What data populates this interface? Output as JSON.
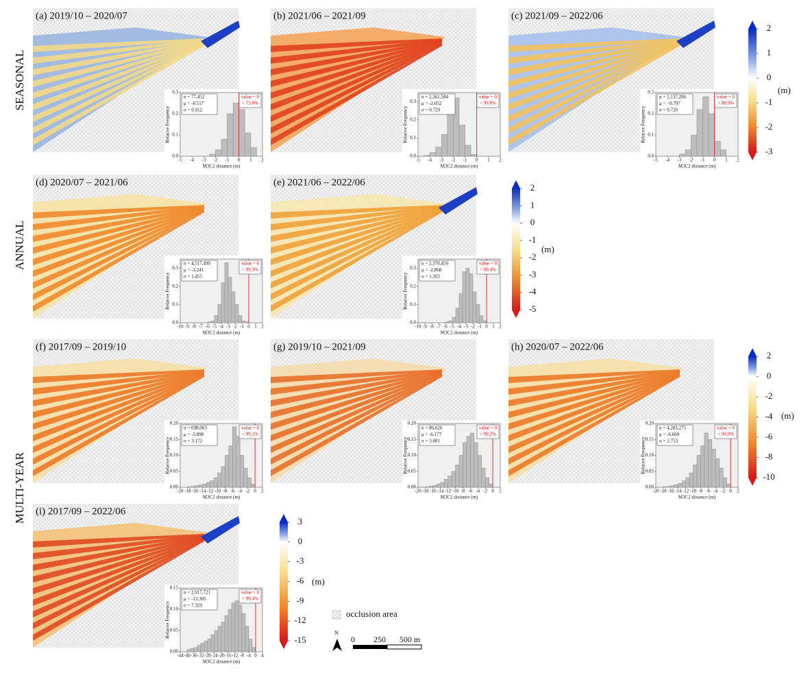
{
  "chart_data": [
    {
      "type": "histogram",
      "panel_label": "(a)  2019/10 – 2020/07",
      "bins": [
        -2.5,
        -2,
        -1.5,
        -1,
        -0.5,
        0,
        0.5,
        1,
        1.5
      ],
      "values": [
        0.01,
        0.03,
        0.08,
        0.2,
        0.25,
        0.22,
        0.11,
        0.04
      ],
      "xlim": [
        -5,
        2
      ],
      "xticks": [
        -5,
        -4,
        -3,
        -2,
        -1,
        0,
        1,
        2
      ],
      "ylim": [
        0,
        0.3
      ],
      "yticks": [
        {
          "value": 0,
          "label": "0.0"
        },
        0.1,
        0.2,
        0.3
      ],
      "xlabel": "M3C2 distance (m)",
      "ylabel": "Relative Frequency",
      "stats": [
        "n = 77,452",
        "μ = -0.517",
        "σ = 0.912"
      ],
      "threshold": 0,
      "threshold_label": [
        "value = 0",
        "< 73.0%"
      ],
      "color": "#bdbdbd"
    },
    {
      "type": "histogram",
      "panel_label": "(b)  2021/06 – 2021/09",
      "bins": [
        -4.5,
        -4,
        -3.5,
        -3,
        -2.5,
        -2,
        -1.5,
        -1,
        -0.5,
        0
      ],
      "values": [
        0.005,
        0.02,
        0.05,
        0.12,
        0.25,
        0.32,
        0.17,
        0.06,
        0.01
      ],
      "xlim": [
        -5,
        2
      ],
      "xticks": [
        -5,
        -4,
        -3,
        -2,
        -1,
        0,
        1,
        2
      ],
      "ylim": [
        0,
        0.35
      ],
      "yticks": [
        {
          "value": 0,
          "label": "0.0"
        },
        0.1,
        0.2,
        0.3
      ],
      "xlabel": "M3C2 distance (m)",
      "ylabel": "Relative Frequency",
      "stats": [
        "n = 2,361,584",
        "μ = -2.052",
        "σ = 0.729"
      ],
      "threshold": 0,
      "threshold_label": [
        "value = 0",
        "< 99.8%"
      ],
      "color": "#bdbdbd"
    },
    {
      "type": "histogram",
      "panel_label": "(c)  2021/09 – 2022/06",
      "bins": [
        -3,
        -2.5,
        -2,
        -1.5,
        -1,
        -0.5,
        0,
        0.5,
        1
      ],
      "values": [
        0.01,
        0.03,
        0.1,
        0.22,
        0.28,
        0.2,
        0.07,
        0.03
      ],
      "xlim": [
        -5,
        2
      ],
      "xticks": [
        -5,
        -4,
        -3,
        -2,
        -1,
        0,
        1,
        2
      ],
      "ylim": [
        0,
        0.3
      ],
      "yticks": [
        {
          "value": 0,
          "label": "0.0"
        },
        0.1,
        0.2,
        0.3
      ],
      "xlabel": "M3C2 distance (m)",
      "ylabel": "Relative Frequency",
      "stats": [
        "n = 2,137,206",
        "μ = −0.797",
        "σ = 0.720"
      ],
      "threshold": 0,
      "threshold_label": [
        "value = 0",
        "< 88.9%"
      ],
      "color": "#bdbdbd"
    },
    {
      "type": "histogram",
      "panel_label": "(d)  2020/07 – 2021/06",
      "bins": [
        -6,
        -5.5,
        -5,
        -4.5,
        -4,
        -3.5,
        -3,
        -2.5,
        -2,
        -1.5,
        -1,
        -0.5,
        0
      ],
      "values": [
        0.005,
        0.01,
        0.04,
        0.1,
        0.22,
        0.33,
        0.25,
        0.17,
        0.1,
        0.04,
        0.01,
        0.005
      ],
      "xlim": [
        -10,
        2
      ],
      "xticks": [
        -10,
        -9,
        -8,
        -7,
        -6,
        -5,
        -4,
        -3,
        -2,
        -1,
        0,
        1,
        2
      ],
      "ylim": [
        0,
        0.35
      ],
      "yticks": [
        {
          "value": 0,
          "label": "0.0"
        },
        0.1,
        0.2,
        0.3
      ],
      "xlabel": "M3C2 distance (m)",
      "ylabel": "Relative Frequency",
      "stats": [
        "n = 4,517,499",
        "μ = -3.241",
        "σ = 1.455"
      ],
      "threshold": 0,
      "threshold_label": [
        "value = 0",
        "< 99.3%"
      ],
      "color": "#bdbdbd"
    },
    {
      "type": "histogram",
      "panel_label": "(e)  2021/06 – 2022/06",
      "bins": [
        -6,
        -5.5,
        -5,
        -4.5,
        -4,
        -3.5,
        -3,
        -2.5,
        -2,
        -1.5,
        -1,
        -0.5,
        0
      ],
      "values": [
        0.005,
        0.01,
        0.03,
        0.08,
        0.16,
        0.28,
        0.3,
        0.27,
        0.17,
        0.1,
        0.04,
        0.01
      ],
      "xlim": [
        -10,
        2
      ],
      "xticks": [
        -10,
        -9,
        -8,
        -7,
        -6,
        -5,
        -4,
        -3,
        -2,
        -1,
        0,
        1,
        2
      ],
      "ylim": [
        0,
        0.35
      ],
      "yticks": [
        {
          "value": 0,
          "label": "0.0"
        },
        0.1,
        0.2,
        0.3
      ],
      "xlabel": "M3C2 distance (m)",
      "ylabel": "Relative Frequency",
      "stats": [
        "n = 2,370,450",
        "μ = -2.868",
        "σ = 1.265"
      ],
      "threshold": 0,
      "threshold_label": [
        "value = 0",
        "< 99.4%"
      ],
      "color": "#bdbdbd"
    },
    {
      "type": "histogram",
      "panel_label": "(f)  2017/09 – 2019/10",
      "bins": [
        -18,
        -17,
        -16,
        -15,
        -14,
        -13,
        -12,
        -11,
        -10,
        -9,
        -8,
        -7,
        -6,
        -5,
        -4,
        -3,
        -2,
        -1,
        0
      ],
      "values": [
        0.002,
        0.003,
        0.005,
        0.007,
        0.01,
        0.015,
        0.02,
        0.03,
        0.045,
        0.065,
        0.1,
        0.13,
        0.19,
        0.16,
        0.1,
        0.06,
        0.03,
        0.01
      ],
      "xlim": [
        -20,
        2
      ],
      "xticks": [
        -20,
        -18,
        -16,
        -14,
        -12,
        -10,
        -8,
        -6,
        -4,
        -2,
        0,
        2
      ],
      "ylim": [
        0,
        0.2
      ],
      "yticks": [
        {
          "value": 0,
          "label": "0.00"
        },
        {
          "value": 0.05,
          "label": "0.05"
        },
        {
          "value": 0.1,
          "label": "0.10"
        },
        {
          "value": 0.15,
          "label": "0.15"
        },
        {
          "value": 0.2,
          "label": "0.20"
        }
      ],
      "xlabel": "M3C2 distance (m)",
      "ylabel": "Relative Frequency",
      "stats": [
        "n = 698,063",
        "μ = -5.890",
        "σ = 3.172"
      ],
      "threshold": 0,
      "threshold_label": [
        "value = 0",
        "< 99.1%"
      ],
      "color": "#bdbdbd"
    },
    {
      "type": "histogram",
      "panel_label": "(g)  2019/10 – 2021/09",
      "bins": [
        -18,
        -17,
        -16,
        -15,
        -14,
        -13,
        -12,
        -11,
        -10,
        -9,
        -8,
        -7,
        -6,
        -5,
        -4,
        -3,
        -2,
        -1,
        0
      ],
      "values": [
        0.002,
        0.004,
        0.006,
        0.01,
        0.015,
        0.025,
        0.035,
        0.05,
        0.07,
        0.1,
        0.14,
        0.16,
        0.17,
        0.14,
        0.1,
        0.06,
        0.03,
        0.01
      ],
      "xlim": [
        -20,
        2
      ],
      "xticks": [
        -20,
        -18,
        -16,
        -14,
        -12,
        -10,
        -8,
        -6,
        -4,
        -2,
        0,
        2
      ],
      "ylim": [
        0,
        0.2
      ],
      "yticks": [
        {
          "value": 0,
          "label": "0.00"
        },
        {
          "value": 0.05,
          "label": "0.05"
        },
        {
          "value": 0.1,
          "label": "0.10"
        },
        {
          "value": 0.15,
          "label": "0.15"
        },
        {
          "value": 0.2,
          "label": "0.20"
        }
      ],
      "xlabel": "M3C2 distance (m)",
      "ylabel": "Relative Frequency",
      "stats": [
        "n = 86,626",
        "μ = -6.177",
        "σ = 3.001"
      ],
      "threshold": 0,
      "threshold_label": [
        "value = 0",
        "< 99.2%"
      ],
      "color": "#bdbdbd"
    },
    {
      "type": "histogram",
      "panel_label": "(h)  2020/07 – 2022/06",
      "bins": [
        -18,
        -17,
        -16,
        -15,
        -14,
        -13,
        -12,
        -11,
        -10,
        -9,
        -8,
        -7,
        -6,
        -5,
        -4,
        -3,
        -2,
        -1,
        0
      ],
      "values": [
        0.002,
        0.003,
        0.005,
        0.008,
        0.012,
        0.02,
        0.03,
        0.045,
        0.07,
        0.1,
        0.13,
        0.17,
        0.15,
        0.12,
        0.09,
        0.06,
        0.03,
        0.01
      ],
      "xlim": [
        -20,
        2
      ],
      "xticks": [
        -20,
        -18,
        -16,
        -14,
        -12,
        -10,
        -8,
        -6,
        -4,
        -2,
        0,
        2
      ],
      "ylim": [
        0,
        0.2
      ],
      "yticks": [
        {
          "value": 0,
          "label": "0.00"
        },
        {
          "value": 0.05,
          "label": "0.05"
        },
        {
          "value": 0.1,
          "label": "0.10"
        },
        {
          "value": 0.15,
          "label": "0.15"
        },
        {
          "value": 0.2,
          "label": "0.20"
        }
      ],
      "xlabel": "M3C2 distance (m)",
      "ylabel": "Relative Frequency",
      "stats": [
        "n = 4,283,275",
        "μ = -6.669",
        "σ = 2.753"
      ],
      "threshold": 0,
      "threshold_label": [
        "value = 0",
        "< 99.9%"
      ],
      "color": "#bdbdbd"
    },
    {
      "type": "histogram",
      "panel_label": "(i)  2017/09 – 2022/06",
      "bins": [
        -40,
        -38,
        -36,
        -34,
        -32,
        -30,
        -28,
        -26,
        -24,
        -22,
        -20,
        -18,
        -16,
        -14,
        -12,
        -10,
        -8,
        -6,
        -4,
        -2,
        0
      ],
      "values": [
        0.005,
        0.008,
        0.01,
        0.015,
        0.02,
        0.025,
        0.03,
        0.04,
        0.05,
        0.06,
        0.07,
        0.085,
        0.1,
        0.115,
        0.12,
        0.11,
        0.09,
        0.06,
        0.03,
        0.01
      ],
      "xlim": [
        -44,
        4
      ],
      "xticks": [
        -44,
        -40,
        -36,
        -32,
        -28,
        -24,
        -20,
        -16,
        -12,
        -8,
        -4,
        0,
        4
      ],
      "ylim": [
        0,
        0.15
      ],
      "yticks": [
        {
          "value": 0,
          "label": "0.00"
        },
        {
          "value": 0.05,
          "label": "0.05"
        },
        {
          "value": 0.1,
          "label": "0.10"
        },
        {
          "value": 0.15,
          "label": "0.15"
        }
      ],
      "xlabel": "M3C2 distance (m)",
      "ylabel": "Relative Frequency",
      "stats": [
        "n = 2,917,721",
        "μ = -13.305",
        "σ = 7.329"
      ],
      "threshold": 0,
      "threshold_label": [
        "value = 0",
        "< 99.4%"
      ],
      "color": "#bdbdbd"
    }
  ],
  "row_labels": [
    "SEASONAL",
    "ANNUAL",
    "MULTI-YEAR"
  ],
  "colorbars": [
    {
      "lim": [
        -3,
        2
      ],
      "ticks": [
        2,
        1,
        0,
        -1,
        -2,
        -3
      ],
      "unit": "(m)"
    },
    {
      "lim": [
        -5,
        2
      ],
      "ticks": [
        2,
        1,
        0,
        -1,
        -2,
        -3,
        -4,
        -5
      ],
      "unit": "(m)"
    },
    {
      "lim": [
        -10,
        2
      ],
      "ticks": [
        2,
        0,
        -2,
        -4,
        -6,
        -8,
        -10
      ],
      "unit": "(m)"
    },
    {
      "lim": [
        -15,
        3
      ],
      "ticks": [
        3,
        0,
        -3,
        -6,
        -9,
        -12,
        -15
      ],
      "unit": "(m)"
    }
  ],
  "legend": "occlusion area",
  "north": "N",
  "scale_bar": [
    "0",
    "250",
    "500 m"
  ]
}
